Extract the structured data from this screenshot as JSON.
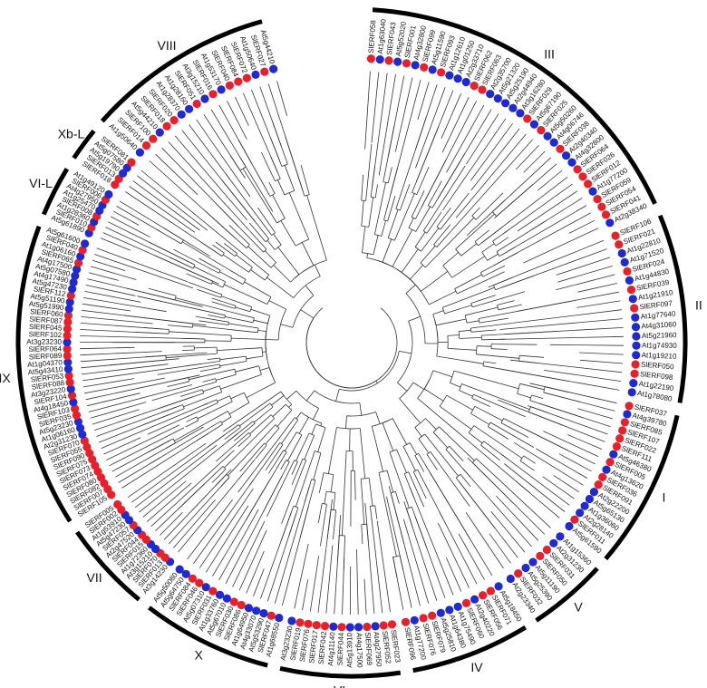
{
  "colors": {
    "tomato": "#e8202a",
    "arabidopsis": "#1f2ad0",
    "branch": "#333333",
    "arc": "#000000"
  },
  "legend_note": "",
  "labels": {
    "groupI": [
      "SlERF037",
      "At4g39780",
      "SlERF085",
      "SlERF107",
      "SlERF022",
      "SlERF111",
      "At5g46380",
      "SlERF005",
      "At4g13620",
      "SlERF036",
      "SlERF091",
      "At2g22200",
      "At5g65130",
      "At1g36060",
      "At2g28140",
      "SlERF011",
      "At5g61590"
    ],
    "groupII": [
      "SlERF106",
      "SlERF021",
      "At1g22810",
      "At1g71520",
      "SlERF024",
      "At1g44830",
      "SlERF039",
      "At1g21910",
      "SlERF097",
      "At1g77640",
      "At4g31060",
      "At5g21960",
      "At1g74930",
      "At1g19210",
      "SlERF050",
      "SlERF098",
      "At1g22190",
      "At1g78080"
    ],
    "groupIII": [
      "SlERF058",
      "At1g63040",
      "SlERF043",
      "At5g52020",
      "SlERF001",
      "At4g32800",
      "SlERF099",
      "At5g11590",
      "SlERF093",
      "At1g12610",
      "At1g01250",
      "At2g33710",
      "SlERF062",
      "SlERF063",
      "At2g35700",
      "At5g21320",
      "At5g25190",
      "At2g44940",
      "At3g16280",
      "SlERF029",
      "At5g67190",
      "SlERF025",
      "At5g50260",
      "At4g06746",
      "SlERF038",
      "At2g40340",
      "At4g32800",
      "SlERF064",
      "SlERF026",
      "SlERF012",
      "At1g77200",
      "SlERF059",
      "SlERF054",
      "SlERF041",
      "At2g38340"
    ],
    "groupIV": [
      "At5g18450",
      "SlERF071",
      "SlERF056",
      "At2g40220",
      "SlERF060",
      "At1g75490",
      "At1g64380",
      "At5g25810",
      "SlERF079",
      "SlERF076",
      "At1g77200",
      "SlERF096"
    ],
    "groupV": [
      "At1g15360",
      "At2g31230",
      "SlERF031",
      "SlERF050",
      "At5g11190",
      "At5g25390",
      "SlERF032",
      "At2g23340"
    ],
    "groupVI": [
      "SlERF023",
      "SlERF052",
      "At4g27950",
      "SlERF069",
      "At4g17500",
      "At5g13910",
      "SlERF044",
      "At4g11140",
      "SlERF042",
      "SlERF017",
      "SlERF076",
      "SlERF019",
      "At3g23230"
    ],
    "groupVII": [
      "At3g14230",
      "SlERF013",
      "SlERF070",
      "At3g15210",
      "At1g72360",
      "SlERF015",
      "SlERF044",
      "At2g47520",
      "SlERF057",
      "At5g47230",
      "At1g53910",
      "SlERF002",
      "SlERF005"
    ],
    "groupVIII": [
      "At1g50640",
      "SlERF014",
      "SlERF100",
      "At5g44210",
      "SlERF018",
      "SlERF020",
      "At1g28370",
      "At1g28160",
      "SlERF051",
      "At3g15210",
      "SlERF016",
      "At1g53170",
      "SlERF040",
      "SlERF084",
      "SlERF072",
      "At1g50640",
      "SlERF027",
      "At5g44210"
    ],
    "groupXbL": [
      "SlERF018",
      "SlERF013",
      "At5g19790",
      "At5g07580",
      "SlERF081"
    ],
    "groupVIL": [
      "At5g61890",
      "SlERF010",
      "At1g28360",
      "SlERF008",
      "At1g25470",
      "At4g27950",
      "SlERF006",
      "At1g49120"
    ],
    "groupIX": [
      "SlERF105",
      "SlERF007",
      "SlERF082",
      "SlERF080",
      "SlERF074",
      "SlERF073",
      "SlERF075",
      "SlERF090",
      "SlERF055",
      "SlERF070",
      "At2g31230",
      "At1g06160",
      "At5g23230",
      "SlERF035",
      "SlERF103",
      "At4g18450",
      "SlERF104",
      "At3g23220",
      "SlERF088",
      "SlERF053",
      "At5g43410",
      "At1g04370",
      "SlERF089",
      "SlERF064",
      "At3g23230",
      "SlERF102",
      "SlERF045",
      "SlERF087",
      "SlERF060",
      "At5g51990",
      "At5g51190",
      "SlERF112",
      "At5g47230",
      "At4g17490",
      "At5g07580",
      "At4g17500",
      "SlERF065",
      "At1g06160",
      "SlERF040",
      "At5g61600"
    ],
    "groupX": [
      "At1g68550",
      "SlERF047",
      "At5g53290",
      "At4g33070",
      "At1g64950",
      "SlERF086",
      "SlERF030",
      "At5g67010",
      "At1g33760",
      "SlERF031",
      "At5g07310",
      "SlERF046",
      "SlERF084",
      "At5g64750",
      "At5g50080"
    ]
  },
  "group_names": [
    "I",
    "II",
    "III",
    "IV",
    "V",
    "VI",
    "VII",
    "X",
    "IX",
    "VI-L",
    "Xb-L",
    "VIII"
  ]
}
